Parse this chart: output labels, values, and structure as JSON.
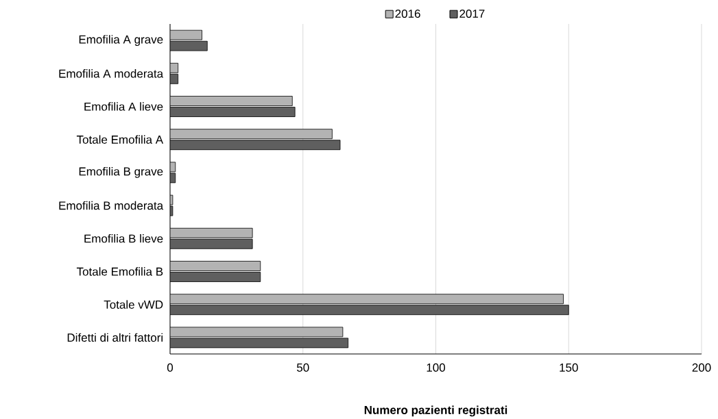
{
  "chart_data": {
    "type": "bar",
    "orientation": "horizontal",
    "xlabel": "Numero pazienti registrati",
    "categories": [
      "Emofilia A grave",
      "Emofilia A moderata",
      "Emofilia A lieve",
      "Totale Emofilia A",
      "Emofilia B grave",
      "Emofilia B moderata",
      "Emofilia B lieve",
      "Totale Emofilia B",
      "Totale vWD",
      "Difetti di altri fattori"
    ],
    "series": [
      {
        "name": "2016",
        "color": "#b3b3b3",
        "values": [
          12,
          3,
          46,
          61,
          2,
          1,
          31,
          34,
          148,
          65
        ]
      },
      {
        "name": "2017",
        "color": "#5f5f5f",
        "values": [
          14,
          3,
          47,
          64,
          2,
          1,
          31,
          34,
          150,
          67
        ]
      }
    ],
    "xlim": [
      0,
      200
    ],
    "xticks": [
      0,
      50,
      100,
      150,
      200
    ],
    "grid": "x",
    "legend": "top"
  }
}
